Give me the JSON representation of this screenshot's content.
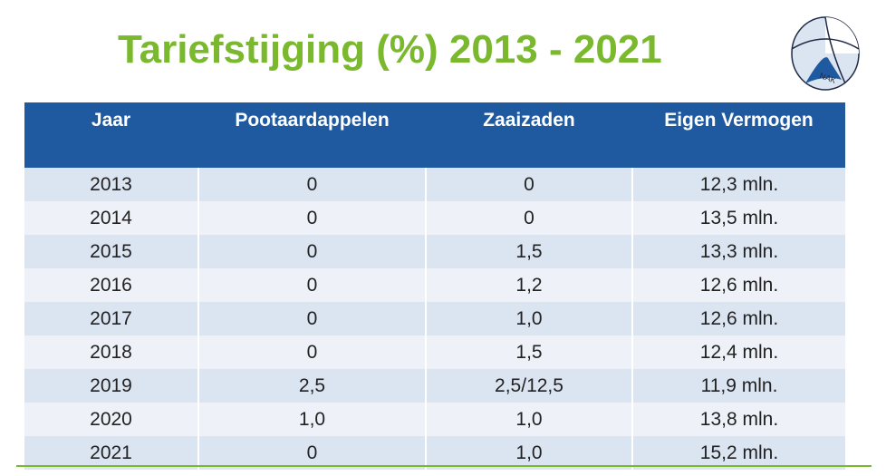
{
  "title": "Tariefstijging (%) 2013 - 2021",
  "logo": {
    "text": "NAK",
    "icon": "nak-logo"
  },
  "table": {
    "headers": [
      "Jaar",
      "Pootaardappelen",
      "Zaaizaden",
      "Eigen Vermogen"
    ],
    "rows": [
      [
        "2013",
        "0",
        "0",
        "12,3 mln."
      ],
      [
        "2014",
        "0",
        "0",
        "13,5 mln."
      ],
      [
        "2015",
        "0",
        "1,5",
        "13,3 mln."
      ],
      [
        "2016",
        "0",
        "1,2",
        "12,6 mln."
      ],
      [
        "2017",
        "0",
        "1,0",
        "12,6 mln."
      ],
      [
        "2018",
        "0",
        "1,5",
        "12,4 mln."
      ],
      [
        "2019",
        "2,5",
        "2,5/12,5",
        "11,9 mln."
      ],
      [
        "2020",
        "1,0",
        "1,0",
        "13,8 mln."
      ],
      [
        "2021",
        "0",
        "1,0",
        "15,2 mln."
      ]
    ]
  },
  "colors": {
    "title": "#7ab82d",
    "header_bg": "#1f5aa0",
    "row_odd": "#dbe4f1",
    "row_even": "#eef2f8",
    "footer_line": "#7ab82d"
  }
}
